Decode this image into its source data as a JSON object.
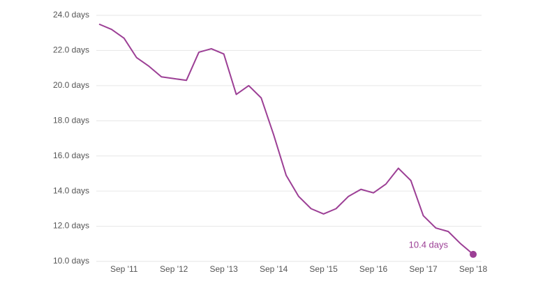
{
  "chart_data": {
    "type": "line",
    "categories": [
      null,
      null,
      "Sep '11",
      null,
      null,
      null,
      "Sep '12",
      null,
      null,
      null,
      "Sep '13",
      null,
      null,
      null,
      "Sep '14",
      null,
      null,
      null,
      "Sep '15",
      null,
      null,
      null,
      "Sep '16",
      null,
      null,
      null,
      "Sep '17",
      null,
      null,
      null,
      "Sep '18"
    ],
    "series": [
      {
        "color": "#9c3f95",
        "values": [
          23.5,
          23.2,
          22.7,
          21.6,
          21.1,
          20.5,
          20.4,
          20.3,
          21.9,
          22.1,
          21.8,
          19.5,
          20.0,
          19.3,
          17.2,
          14.9,
          13.7,
          13.0,
          12.7,
          13.0,
          13.7,
          14.1,
          13.9,
          14.4,
          15.3,
          14.6,
          12.6,
          11.9,
          11.7,
          11.0,
          10.4
        ],
        "value_labels": [
          null,
          null,
          null,
          null,
          null,
          null,
          null,
          null,
          null,
          null,
          null,
          null,
          null,
          null,
          null,
          null,
          null,
          null,
          null,
          null,
          null,
          null,
          null,
          null,
          null,
          null,
          null,
          null,
          null,
          null,
          "10.4 days"
        ]
      }
    ],
    "ylim": [
      10,
      24
    ],
    "yticks": [
      {
        "value": 10,
        "label": "10.0 days"
      },
      {
        "value": 12,
        "label": "12.0 days"
      },
      {
        "value": 14,
        "label": "14.0 days"
      },
      {
        "value": 16,
        "label": "16.0 days"
      },
      {
        "value": 18,
        "label": "18.0 days"
      },
      {
        "value": 20,
        "label": "20.0 days"
      },
      {
        "value": 22,
        "label": "22.0 days"
      },
      {
        "value": 24,
        "label": "24.0 days"
      }
    ],
    "grid": true
  }
}
